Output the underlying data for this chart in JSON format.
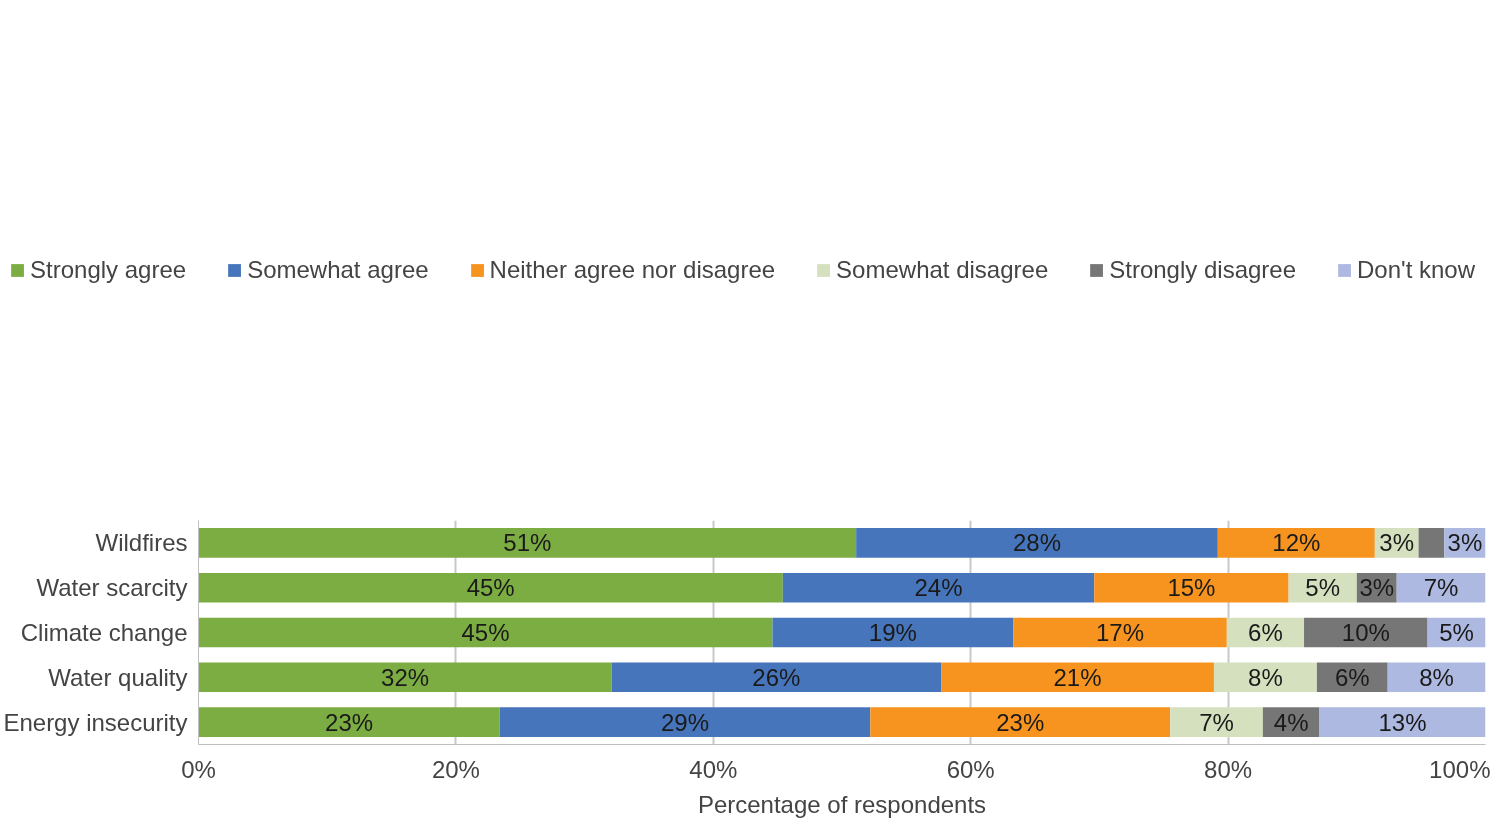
{
  "chart_data": {
    "type": "bar",
    "orientation": "horizontal",
    "stacked": true,
    "xlabel": "Percentage of respondents",
    "categories": [
      "Wildfires",
      "Water scarcity",
      "Climate change",
      "Water quality",
      "Energy insecurity"
    ],
    "series": [
      {
        "name": "Strongly agree",
        "color": "#7cad42",
        "values": [
          51.1,
          45.4,
          44.6,
          32.1,
          23.4
        ],
        "value_labels": [
          "51%",
          "45%",
          "45%",
          "32%",
          "23%"
        ]
      },
      {
        "name": "Somewhat agree",
        "color": "#4775bb",
        "values": [
          28.1,
          24.2,
          18.7,
          25.6,
          28.8
        ],
        "value_labels": [
          "28%",
          "24%",
          "19%",
          "26%",
          "29%"
        ]
      },
      {
        "name": "Neither agree nor disagree",
        "color": "#f79420",
        "values": [
          12.2,
          15.1,
          16.6,
          21.2,
          23.3
        ],
        "value_labels": [
          "12%",
          "15%",
          "17%",
          "21%",
          "23%"
        ]
      },
      {
        "name": "Somewhat disagree",
        "color": "#d5e0bf",
        "values": [
          3.4,
          5.3,
          6.0,
          8.0,
          7.2
        ],
        "value_labels": [
          "3%",
          "5%",
          "6%",
          "8%",
          "7%"
        ]
      },
      {
        "name": "Strongly disagree",
        "color": "#767676",
        "values": [
          2.0,
          3.1,
          9.6,
          5.5,
          4.4
        ],
        "value_labels": [
          null,
          "3%",
          "10%",
          "6%",
          "4%"
        ]
      },
      {
        "name": "Don't know",
        "color": "#adb9e0",
        "values": [
          3.2,
          6.9,
          4.5,
          7.6,
          12.9
        ],
        "value_labels": [
          "3%",
          "7%",
          "5%",
          "8%",
          "13%"
        ]
      }
    ],
    "xlim": [
      0,
      100
    ],
    "xticks": [
      {
        "value": 0,
        "label": "0%"
      },
      {
        "value": 20,
        "label": "20%"
      },
      {
        "value": 40,
        "label": "40%"
      },
      {
        "value": 60,
        "label": "60%"
      },
      {
        "value": 80,
        "label": "80%"
      },
      {
        "value": 100,
        "label": "100%"
      }
    ],
    "grid": "x",
    "legend": "top"
  }
}
